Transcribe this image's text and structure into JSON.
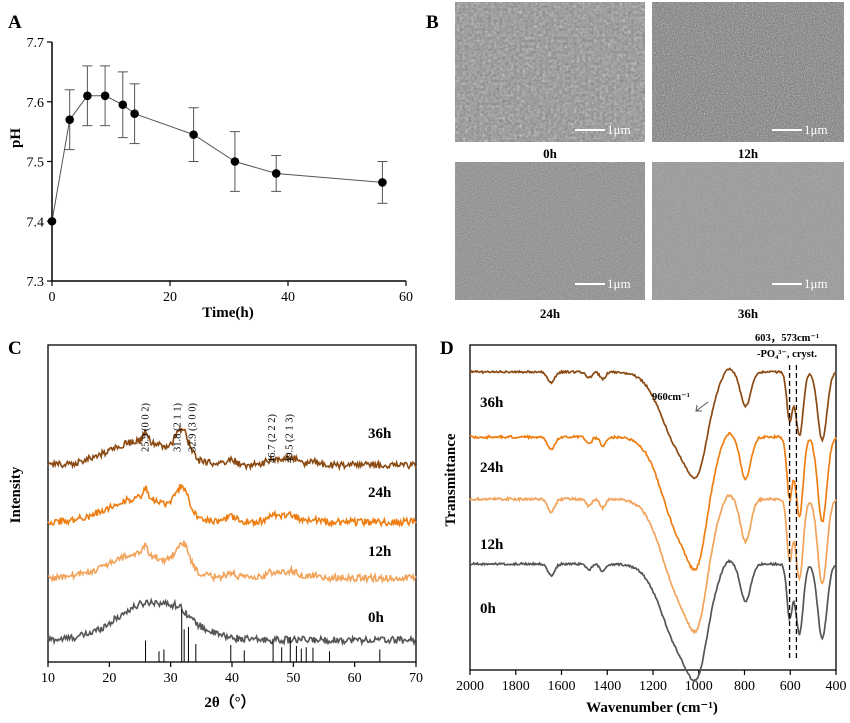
{
  "panels": {
    "A": "A",
    "B": "B",
    "C": "C",
    "D": "D"
  },
  "chart_data": [
    {
      "panel": "A",
      "type": "line",
      "xlabel": "Time(h)",
      "ylabel": "pH",
      "xlim": [
        0,
        60
      ],
      "ylim": [
        7.3,
        7.7
      ],
      "xticks": [
        0,
        20,
        40,
        60
      ],
      "yticks": [
        "7.3",
        "7.4",
        "7.5",
        "7.6",
        "7.7"
      ],
      "series": [
        {
          "x": [
            0,
            3,
            6,
            9,
            12,
            14,
            24,
            31,
            38,
            56
          ],
          "y": [
            7.4,
            7.57,
            7.61,
            7.61,
            7.595,
            7.58,
            7.545,
            7.5,
            7.48,
            7.465
          ],
          "err": [
            0,
            0.05,
            0.05,
            0.05,
            0.055,
            0.05,
            0.045,
            0.05,
            0.03,
            0.035
          ]
        }
      ],
      "color": "#000000",
      "grid": false
    },
    {
      "panel": "C",
      "type": "line",
      "xlabel": "2θ（°）",
      "ylabel": "Intensity",
      "xlim": [
        10,
        70
      ],
      "xticks": [
        10,
        20,
        30,
        40,
        50,
        60,
        70
      ],
      "series": [
        {
          "name": "36h",
          "color": "#8b4a12",
          "offset": 3
        },
        {
          "name": "24h",
          "color": "#ee7e12",
          "offset": 2
        },
        {
          "name": "12h",
          "color": "#f2a35a",
          "offset": 1
        },
        {
          "name": "0h",
          "color": "#555555",
          "offset": 0
        }
      ],
      "peak_annotations": [
        {
          "x": 25.9,
          "label": "25.9 (0 0 2)"
        },
        {
          "x": 31.8,
          "label": "31.8 (2 1 1)"
        },
        {
          "x": 32.9,
          "label": "32.9 (3 0 0)"
        },
        {
          "x": 46.7,
          "label": "46.7 (2 2 2)"
        },
        {
          "x": 49.5,
          "label": "49.5 (2 1 3)"
        }
      ],
      "reference_lines": [
        {
          "x": 25.9,
          "h": 0.3
        },
        {
          "x": 28.1,
          "h": 0.06
        },
        {
          "x": 28.9,
          "h": 0.1
        },
        {
          "x": 31.8,
          "h": 1.0
        },
        {
          "x": 32.2,
          "h": 0.55
        },
        {
          "x": 32.9,
          "h": 0.6
        },
        {
          "x": 34.1,
          "h": 0.22
        },
        {
          "x": 39.8,
          "h": 0.2
        },
        {
          "x": 42.0,
          "h": 0.08
        },
        {
          "x": 46.7,
          "h": 0.28
        },
        {
          "x": 48.1,
          "h": 0.15
        },
        {
          "x": 49.5,
          "h": 0.38
        },
        {
          "x": 50.5,
          "h": 0.18
        },
        {
          "x": 51.3,
          "h": 0.12
        },
        {
          "x": 52.1,
          "h": 0.15
        },
        {
          "x": 53.2,
          "h": 0.14
        },
        {
          "x": 55.9,
          "h": 0.06
        },
        {
          "x": 64.1,
          "h": 0.1
        }
      ]
    },
    {
      "panel": "D",
      "type": "line",
      "xlabel": "Wavenumber (cm⁻¹)",
      "ylabel": "Transmittance",
      "xlim": [
        2000,
        400
      ],
      "xticks": [
        2000,
        1800,
        1600,
        1400,
        1200,
        1000,
        800,
        600,
        400
      ],
      "series": [
        {
          "name": "36h",
          "color": "#8b4a12",
          "offset": 3
        },
        {
          "name": "24h",
          "color": "#ee7e12",
          "offset": 2
        },
        {
          "name": "12h",
          "color": "#f2a35a",
          "offset": 1
        },
        {
          "name": "0h",
          "color": "#555555",
          "offset": 0
        }
      ],
      "annotations": [
        {
          "label": "960cm⁻¹",
          "x": 960
        },
        {
          "label_line1": "603，573cm⁻¹",
          "label_line2": "-PO₄³⁻, cryst.",
          "x": [
            603,
            573
          ]
        }
      ]
    }
  ],
  "sem": {
    "images": [
      {
        "caption": "0h",
        "scale": "1μm"
      },
      {
        "caption": "12h",
        "scale": "1μm"
      },
      {
        "caption": "24h",
        "scale": "1μm"
      },
      {
        "caption": "36h",
        "scale": "1μm"
      }
    ]
  }
}
